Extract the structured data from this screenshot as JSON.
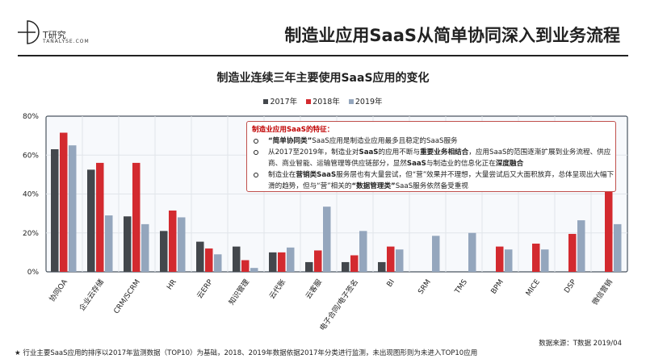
{
  "header": {
    "title": "制造业应用SaaS从简单协同深入到业务流程",
    "logo_cn": "T研究",
    "logo_en": "TANALYSE.COM"
  },
  "chart_data": {
    "type": "bar",
    "title": "制造业连续三年主要使用SaaS应用的变化",
    "categories": [
      "协同OA",
      "企业云存储",
      "CRM/SCRM",
      "HR",
      "云ERP",
      "知识管理",
      "云代账",
      "云客服",
      "电子合同/电子签名",
      "BI",
      "SRM",
      "TMS",
      "BPM",
      "MICE",
      "DSP",
      "微信营销"
    ],
    "series": [
      {
        "name": "2017年",
        "color": "#43474c",
        "values": [
          63,
          52.5,
          28.5,
          21,
          15.5,
          13,
          10,
          5,
          5,
          5,
          null,
          null,
          null,
          null,
          null,
          null
        ]
      },
      {
        "name": "2018年",
        "color": "#d32a2f",
        "values": [
          71.5,
          56,
          56,
          31.5,
          12,
          6,
          10,
          11,
          8.5,
          13,
          null,
          null,
          13,
          14.5,
          19.5,
          43
        ]
      },
      {
        "name": "2019年",
        "color": "#94a6bd",
        "values": [
          65,
          29,
          24.5,
          28,
          9,
          2,
          12.5,
          33.5,
          21,
          11.5,
          18.5,
          20,
          11.5,
          11.5,
          26.5,
          24.5
        ]
      }
    ],
    "ylim": [
      0,
      80
    ],
    "yticks": [
      "0%",
      "20%",
      "40%",
      "60%",
      "80%"
    ],
    "grid": true,
    "legend": "top-center"
  },
  "annotation": {
    "title": "制造业应用SaaS的特征：",
    "bullets": [
      [
        {
          "t": "“简单协同类”",
          "b": true
        },
        {
          "t": "SaaS应用是制造业应用最多且稳定的SaaS服务"
        }
      ],
      [
        {
          "t": "从2017至2019年，制造业对"
        },
        {
          "t": "SaaS",
          "b": true
        },
        {
          "t": "的应用不断与"
        },
        {
          "t": "重要业务相结合",
          "b": true
        },
        {
          "t": "，应用SaaS的范围逐渐扩展到业务流程、供应商、商业智能、运输管理等供应链部分，显然"
        },
        {
          "t": "SaaS",
          "b": true
        },
        {
          "t": "与制造业的信息化正在"
        },
        {
          "t": "深度融合",
          "b": true
        }
      ],
      [
        {
          "t": "制造业在"
        },
        {
          "t": "营销类SaaS",
          "b": true
        },
        {
          "t": "服务层也有大量尝试，但“营”效果并不理想，大量尝试后又大面积放弃，总体呈现出大幅下滑的趋势，但与“营”相关的"
        },
        {
          "t": "“数据管理类”",
          "b": true
        },
        {
          "t": "SaaS服务依然备受重视"
        }
      ]
    ]
  },
  "footer": {
    "note": "★  行业主要SaaS应用的排序以2017年监测数据（TOP10）为基础，2018、2019年数据依据2017年分类进行监测，未出现图形则为未进入TOP10应用",
    "source": "数据来源：T数据 2019/04"
  }
}
